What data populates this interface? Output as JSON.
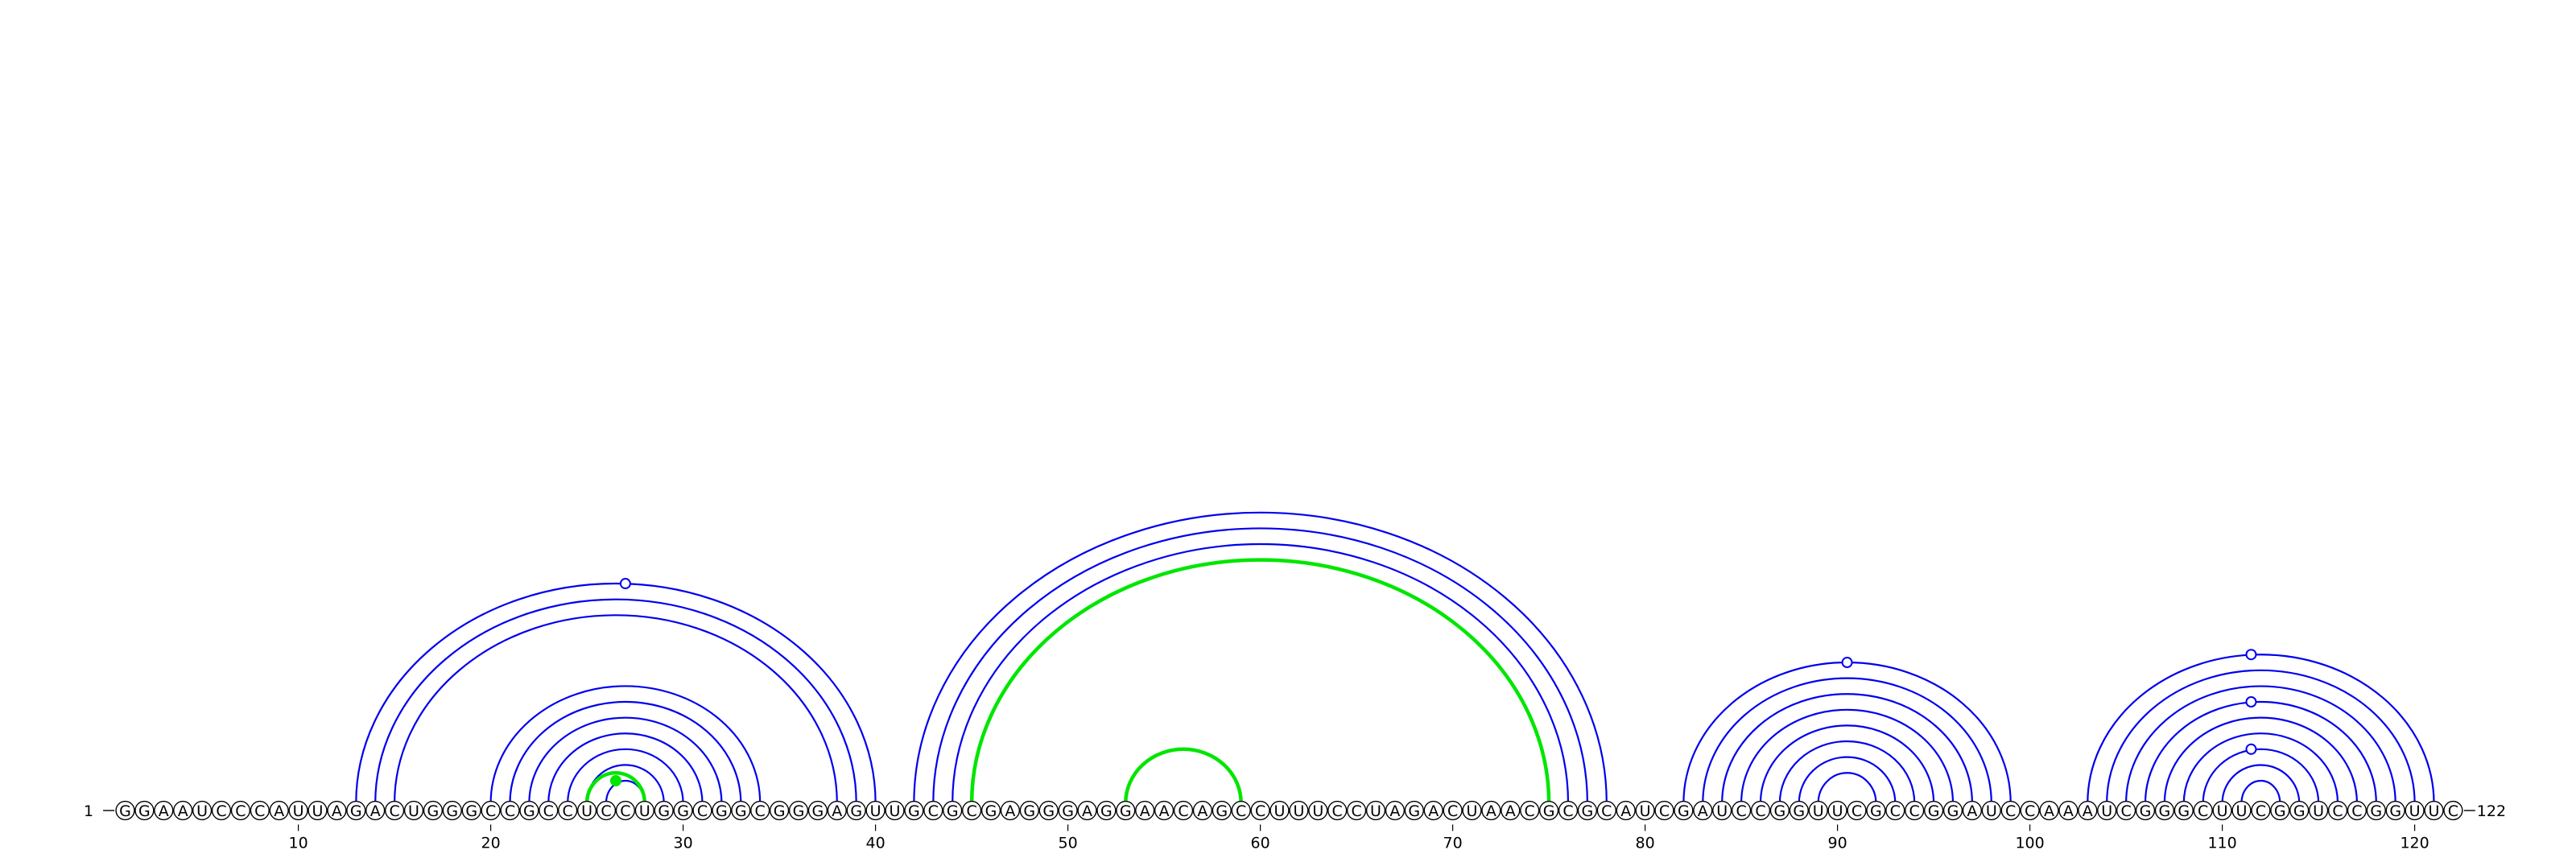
{
  "sequence": "GGAAUCCCAUUAGACUGGGCCGCCUCCUGGCGGCGGGAGUUGCGCGAGGGAGGAACAGCCUUUCCUAGACUAACGCGCAUCGAUCCGGUUCGCCGGAUCCAAAUCGGGCUUCGGUCCGGUUC",
  "start_label": "1",
  "end_label": "122",
  "ticks": [
    10,
    20,
    30,
    40,
    50,
    60,
    70,
    80,
    90,
    100,
    110,
    120
  ],
  "colors": {
    "helix": "#0000ee",
    "pseudoknot": "#00e600",
    "marker_fill": "#ffffff",
    "nucleotide_outline": "#000000"
  },
  "chart_data": {
    "type": "arc-diagram",
    "pairs_blue": [
      [
        13,
        40
      ],
      [
        14,
        39
      ],
      [
        15,
        38
      ],
      [
        20,
        34
      ],
      [
        21,
        33
      ],
      [
        22,
        32
      ],
      [
        23,
        31
      ],
      [
        24,
        30
      ],
      [
        25,
        29
      ],
      [
        26,
        28
      ],
      [
        42,
        78
      ],
      [
        43,
        77
      ],
      [
        44,
        76
      ],
      [
        82,
        99
      ],
      [
        83,
        98
      ],
      [
        84,
        97
      ],
      [
        85,
        96
      ],
      [
        86,
        95
      ],
      [
        87,
        94
      ],
      [
        88,
        93
      ],
      [
        89,
        92
      ],
      [
        103,
        121
      ],
      [
        104,
        120
      ],
      [
        105,
        119
      ],
      [
        106,
        118
      ],
      [
        107,
        117
      ],
      [
        108,
        116
      ],
      [
        109,
        115
      ],
      [
        110,
        114
      ],
      [
        111,
        113
      ]
    ],
    "pairs_green": [
      [
        25,
        28
      ],
      [
        45,
        75
      ],
      [
        53,
        59
      ]
    ],
    "markers": [
      {
        "pos": 27,
        "color": "white"
      },
      {
        "pos": 26.5,
        "color": "green"
      },
      {
        "pos": 90.5,
        "color": "white"
      },
      {
        "pos": 111.5,
        "color": "white"
      },
      {
        "pos": 111.5,
        "color": "white"
      },
      {
        "pos": 111.5,
        "color": "white"
      }
    ]
  }
}
